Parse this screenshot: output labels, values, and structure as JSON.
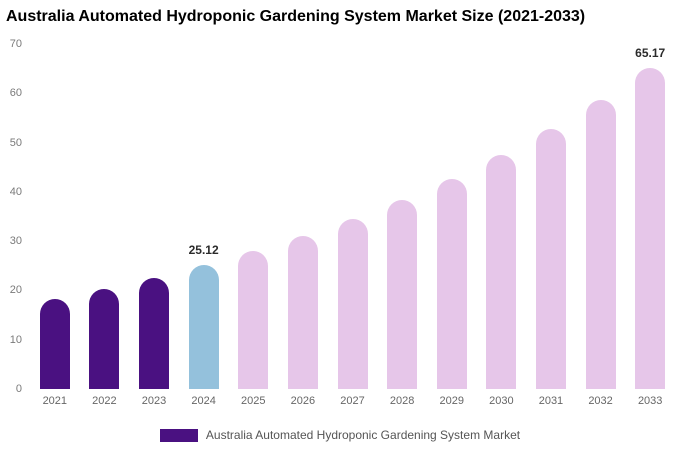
{
  "title": "Australia Automated Hydroponic Gardening System Market Size (2021-2033)",
  "legend": {
    "label": "Australia Automated Hydroponic Gardening System Market"
  },
  "colors": {
    "historical_purple": "#4a1181",
    "current_blue": "#94c1dc",
    "forecast_pink": "#e6c6e9",
    "axis_text": "#7a7a7a",
    "value_label_text": "#2b2b2b"
  },
  "chart_data": {
    "type": "bar",
    "title": "Australia Automated Hydroponic Gardening System Market Size (2021-2033)",
    "xlabel": "",
    "ylabel": "",
    "ylim": [
      0,
      70
    ],
    "yticks": [
      0,
      10,
      20,
      30,
      40,
      50,
      60,
      70
    ],
    "grid": false,
    "legend_position": "bottom",
    "categories": [
      "2021",
      "2022",
      "2023",
      "2024",
      "2025",
      "2026",
      "2027",
      "2028",
      "2029",
      "2030",
      "2031",
      "2032",
      "2033"
    ],
    "values": [
      18.28,
      20.32,
      22.6,
      25.12,
      27.93,
      31.05,
      34.52,
      38.38,
      42.67,
      47.44,
      52.74,
      58.63,
      65.17
    ],
    "bar_colors": [
      "#4a1181",
      "#4a1181",
      "#4a1181",
      "#94c1dc",
      "#e6c6e9",
      "#e6c6e9",
      "#e6c6e9",
      "#e6c6e9",
      "#e6c6e9",
      "#e6c6e9",
      "#e6c6e9",
      "#e6c6e9",
      "#e6c6e9"
    ],
    "annotations": [
      {
        "index": 3,
        "text": "25.12"
      },
      {
        "index": 12,
        "text": "65.17"
      }
    ]
  }
}
